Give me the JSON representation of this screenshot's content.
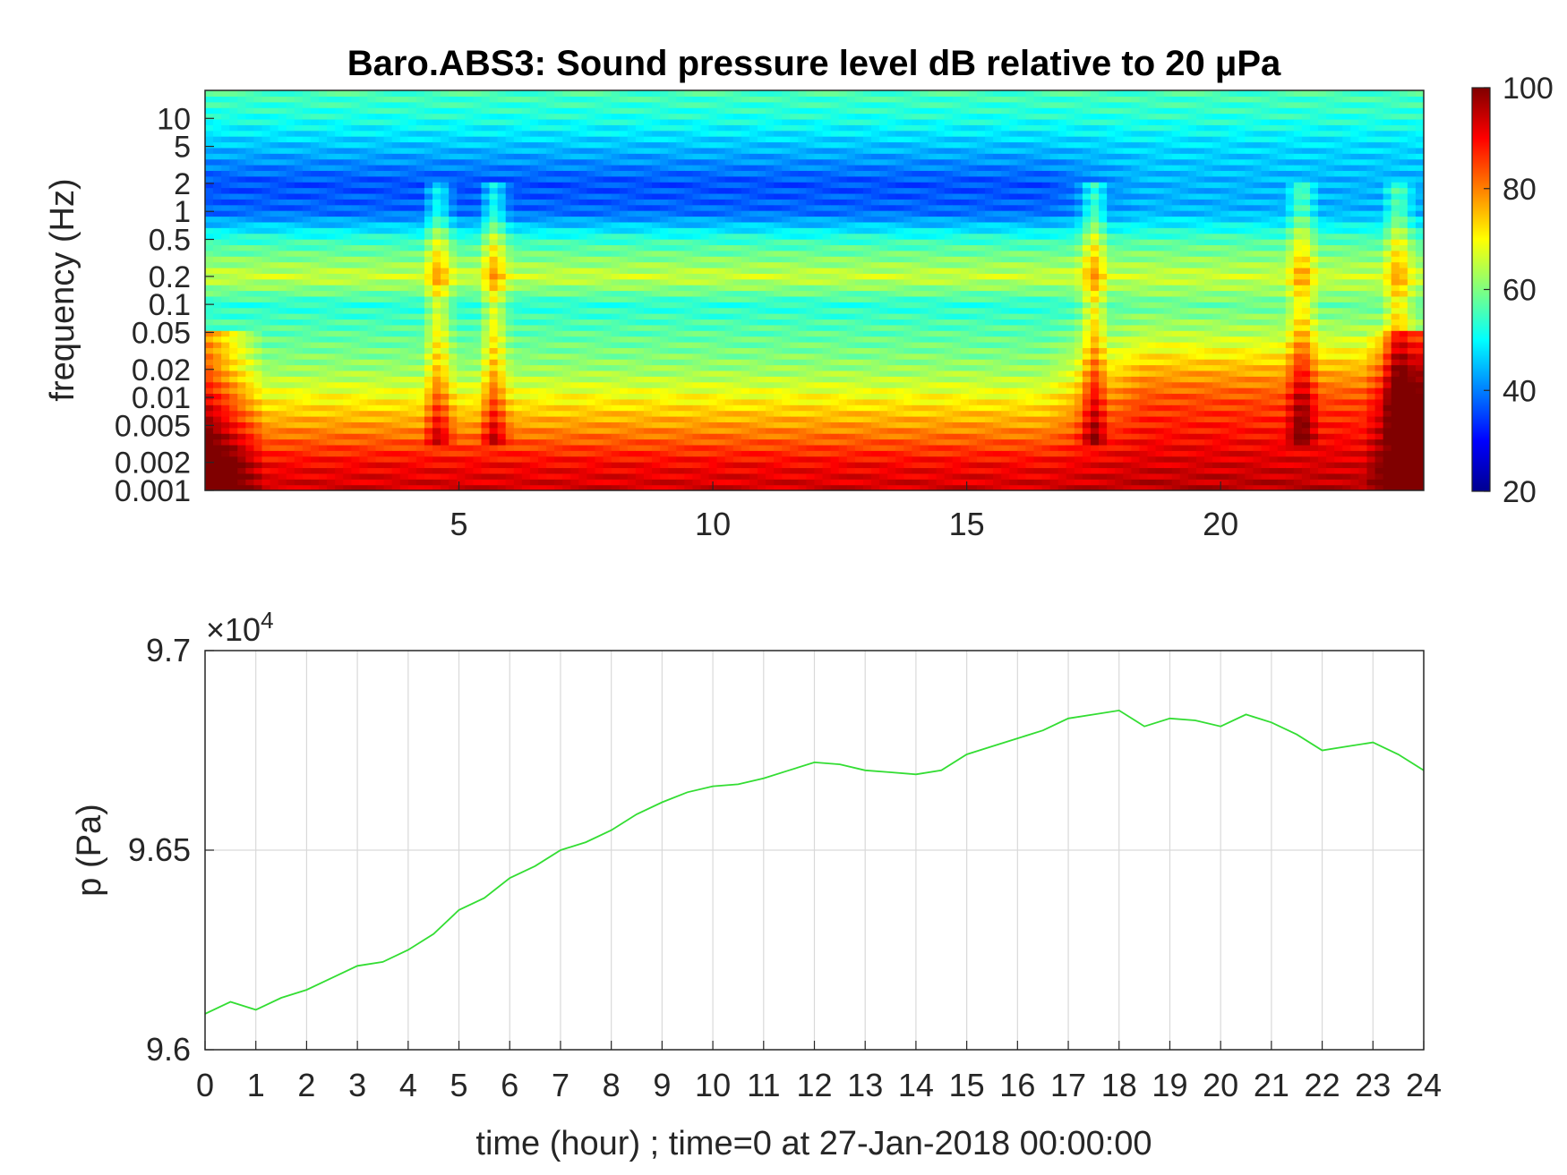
{
  "chart_data": [
    {
      "type": "heatmap",
      "title": "Baro.ABS3: Sound pressure level dB relative to 20 μPa",
      "ylabel": "frequency (Hz)",
      "xlabel": "",
      "y_scale": "log",
      "ylim": [
        0.001,
        20
      ],
      "xlim": [
        0,
        24
      ],
      "xticks": [
        "5",
        "10",
        "15",
        "20"
      ],
      "xtick_values": [
        5,
        10,
        15,
        20
      ],
      "yticks": [
        "10",
        "5",
        "2",
        "1",
        "0.5",
        "0.2",
        "0.1",
        "0.05",
        "0.02",
        "0.01",
        "0.005",
        "0.002",
        "0.001"
      ],
      "ytick_values": [
        10,
        5,
        2,
        1,
        0.5,
        0.2,
        0.1,
        0.05,
        0.02,
        0.01,
        0.005,
        0.002,
        0.001
      ],
      "colormap": "jet",
      "colorbar": {
        "range": [
          20,
          100
        ],
        "ticks": [
          "20",
          "40",
          "60",
          "80",
          "100"
        ],
        "tick_values": [
          20,
          40,
          60,
          80,
          100
        ]
      },
      "spectral_profile_db": {
        "frequency_hz": [
          0.001,
          0.002,
          0.005,
          0.01,
          0.02,
          0.05,
          0.1,
          0.2,
          0.5,
          1,
          2,
          5,
          10,
          20
        ],
        "level_db_early": [
          94,
          90,
          78,
          70,
          62,
          57,
          53,
          66,
          54,
          38,
          36,
          45,
          52,
          56
        ],
        "level_db_late": [
          96,
          93,
          88,
          84,
          76,
          64,
          58,
          66,
          56,
          44,
          44,
          47,
          53,
          56
        ]
      },
      "transient_events_hour": [
        4.6,
        5.7,
        17.5,
        21.6,
        23.5
      ],
      "grid": false
    },
    {
      "type": "line",
      "title": "",
      "xlabel": "time (hour) ; time=0 at 27-Jan-2018 00:00:00",
      "ylabel": "p (Pa)",
      "xlim": [
        0,
        24
      ],
      "ylim": [
        96000,
        97000
      ],
      "xticks": [
        "0",
        "1",
        "2",
        "3",
        "4",
        "5",
        "6",
        "7",
        "8",
        "9",
        "10",
        "11",
        "12",
        "13",
        "14",
        "15",
        "16",
        "17",
        "18",
        "19",
        "20",
        "21",
        "22",
        "23",
        "24"
      ],
      "yticks": [
        "9.6",
        "9.65",
        "9.7"
      ],
      "ytick_values": [
        96000,
        96500,
        97000
      ],
      "y_exponent_label": "×10",
      "y_exponent_power": "4",
      "grid": true,
      "series": [
        {
          "color": "#33dd33",
          "x": [
            0,
            0.5,
            1,
            1.5,
            2,
            2.5,
            3,
            3.5,
            4,
            4.5,
            5,
            5.5,
            6,
            6.5,
            7,
            7.5,
            8,
            8.5,
            9,
            9.5,
            10,
            10.5,
            11,
            11.5,
            12,
            12.5,
            13,
            13.5,
            14,
            14.5,
            15,
            15.5,
            16,
            16.5,
            17,
            17.5,
            18,
            18.5,
            19,
            19.5,
            20,
            20.5,
            21,
            21.5,
            22,
            22.5,
            23,
            23.5,
            24
          ],
          "y": [
            96090,
            96120,
            96100,
            96130,
            96150,
            96180,
            96210,
            96220,
            96250,
            96290,
            96350,
            96380,
            96430,
            96460,
            96500,
            96520,
            96550,
            96590,
            96620,
            96645,
            96660,
            96665,
            96680,
            96700,
            96720,
            96715,
            96700,
            96695,
            96690,
            96700,
            96740,
            96760,
            96780,
            96800,
            96830,
            96840,
            96850,
            96810,
            96830,
            96825,
            96810,
            96840,
            96820,
            96790,
            96750,
            96760,
            96770,
            96740,
            96700
          ]
        }
      ]
    }
  ]
}
